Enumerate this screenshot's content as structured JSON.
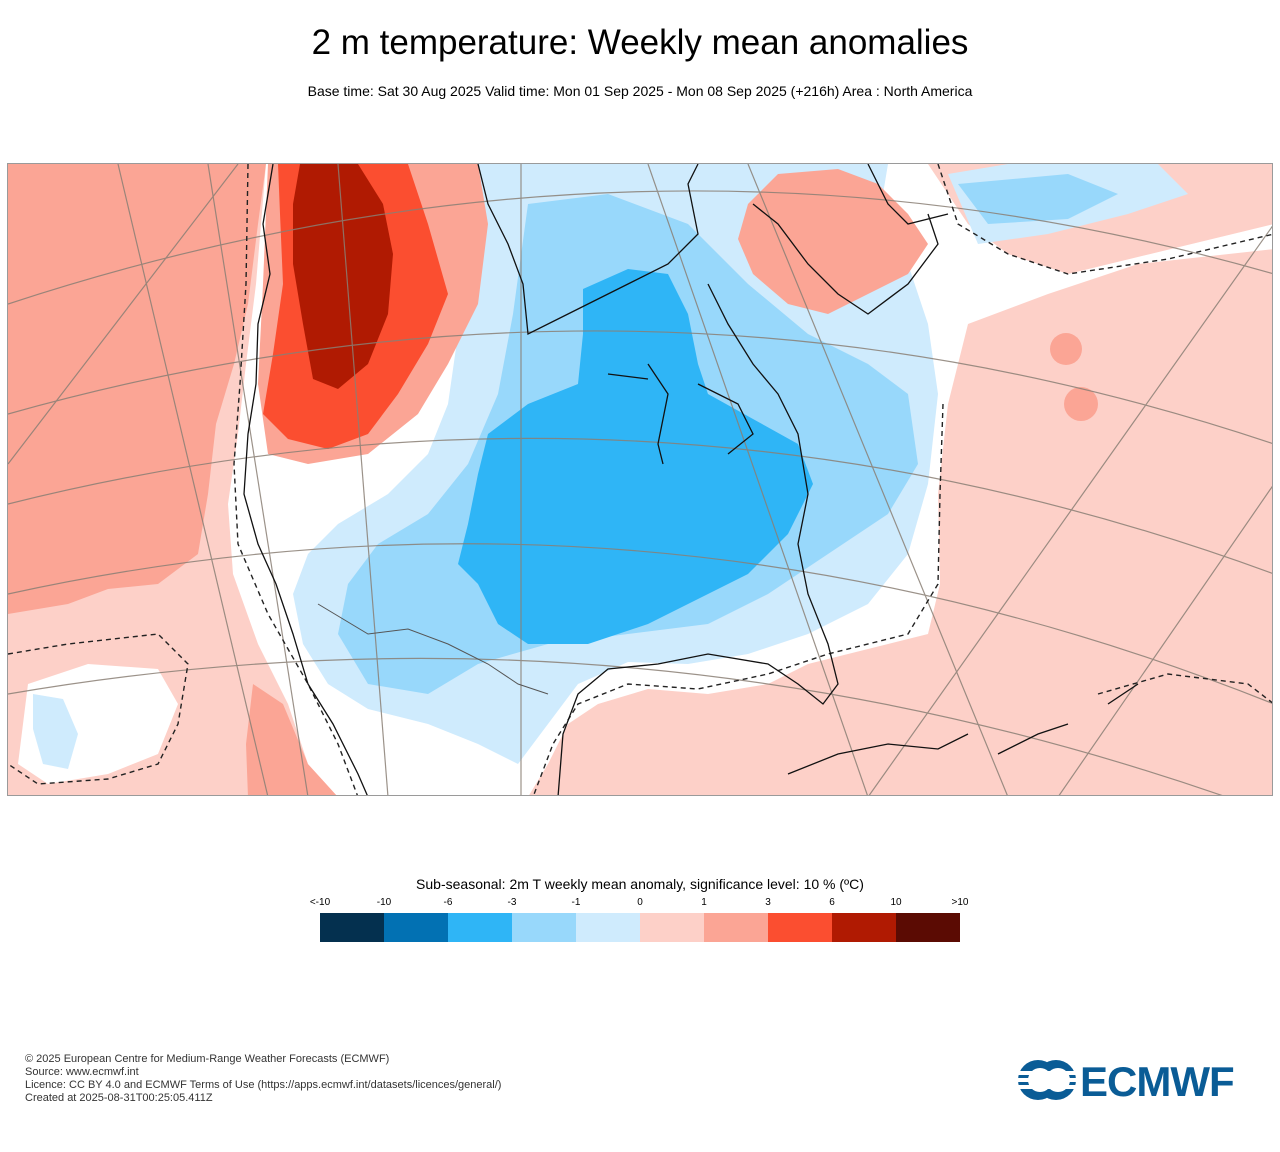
{
  "header": {
    "title": "2 m temperature: Weekly mean anomalies",
    "subtitle": "Base time: Sat 30 Aug 2025 Valid time: Mon 01 Sep 2025 - Mon 08 Sep 2025 (+216h) Area : North America"
  },
  "map": {
    "region": "North America",
    "variable": "2m T weekly mean anomaly"
  },
  "legend": {
    "title": "Sub-seasonal: 2m T weekly mean anomaly, significance level: 10 % (ºC)",
    "ticks": [
      "<-10",
      "-10",
      "-6",
      "-3",
      "-1",
      "0",
      "1",
      "3",
      "6",
      "10",
      ">10"
    ],
    "colors": [
      "#04304f",
      "#0271b3",
      "#2fb5f6",
      "#98d8fb",
      "#cfebfd",
      "#fdd0c8",
      "#fba595",
      "#fb4e30",
      "#b01a02",
      "#5b0b03"
    ]
  },
  "footer": {
    "lines": [
      "© 2025 European Centre for Medium-Range Weather Forecasts (ECMWF)",
      "Source: www.ecmwf.int",
      "Licence: CC BY 4.0 and ECMWF Terms of Use (https://apps.ecmwf.int/datasets/licences/general/)",
      "Created at 2025-08-31T00:25:05.411Z"
    ],
    "logo_text": "ECMWF",
    "logo_color": "#0a5c96"
  }
}
